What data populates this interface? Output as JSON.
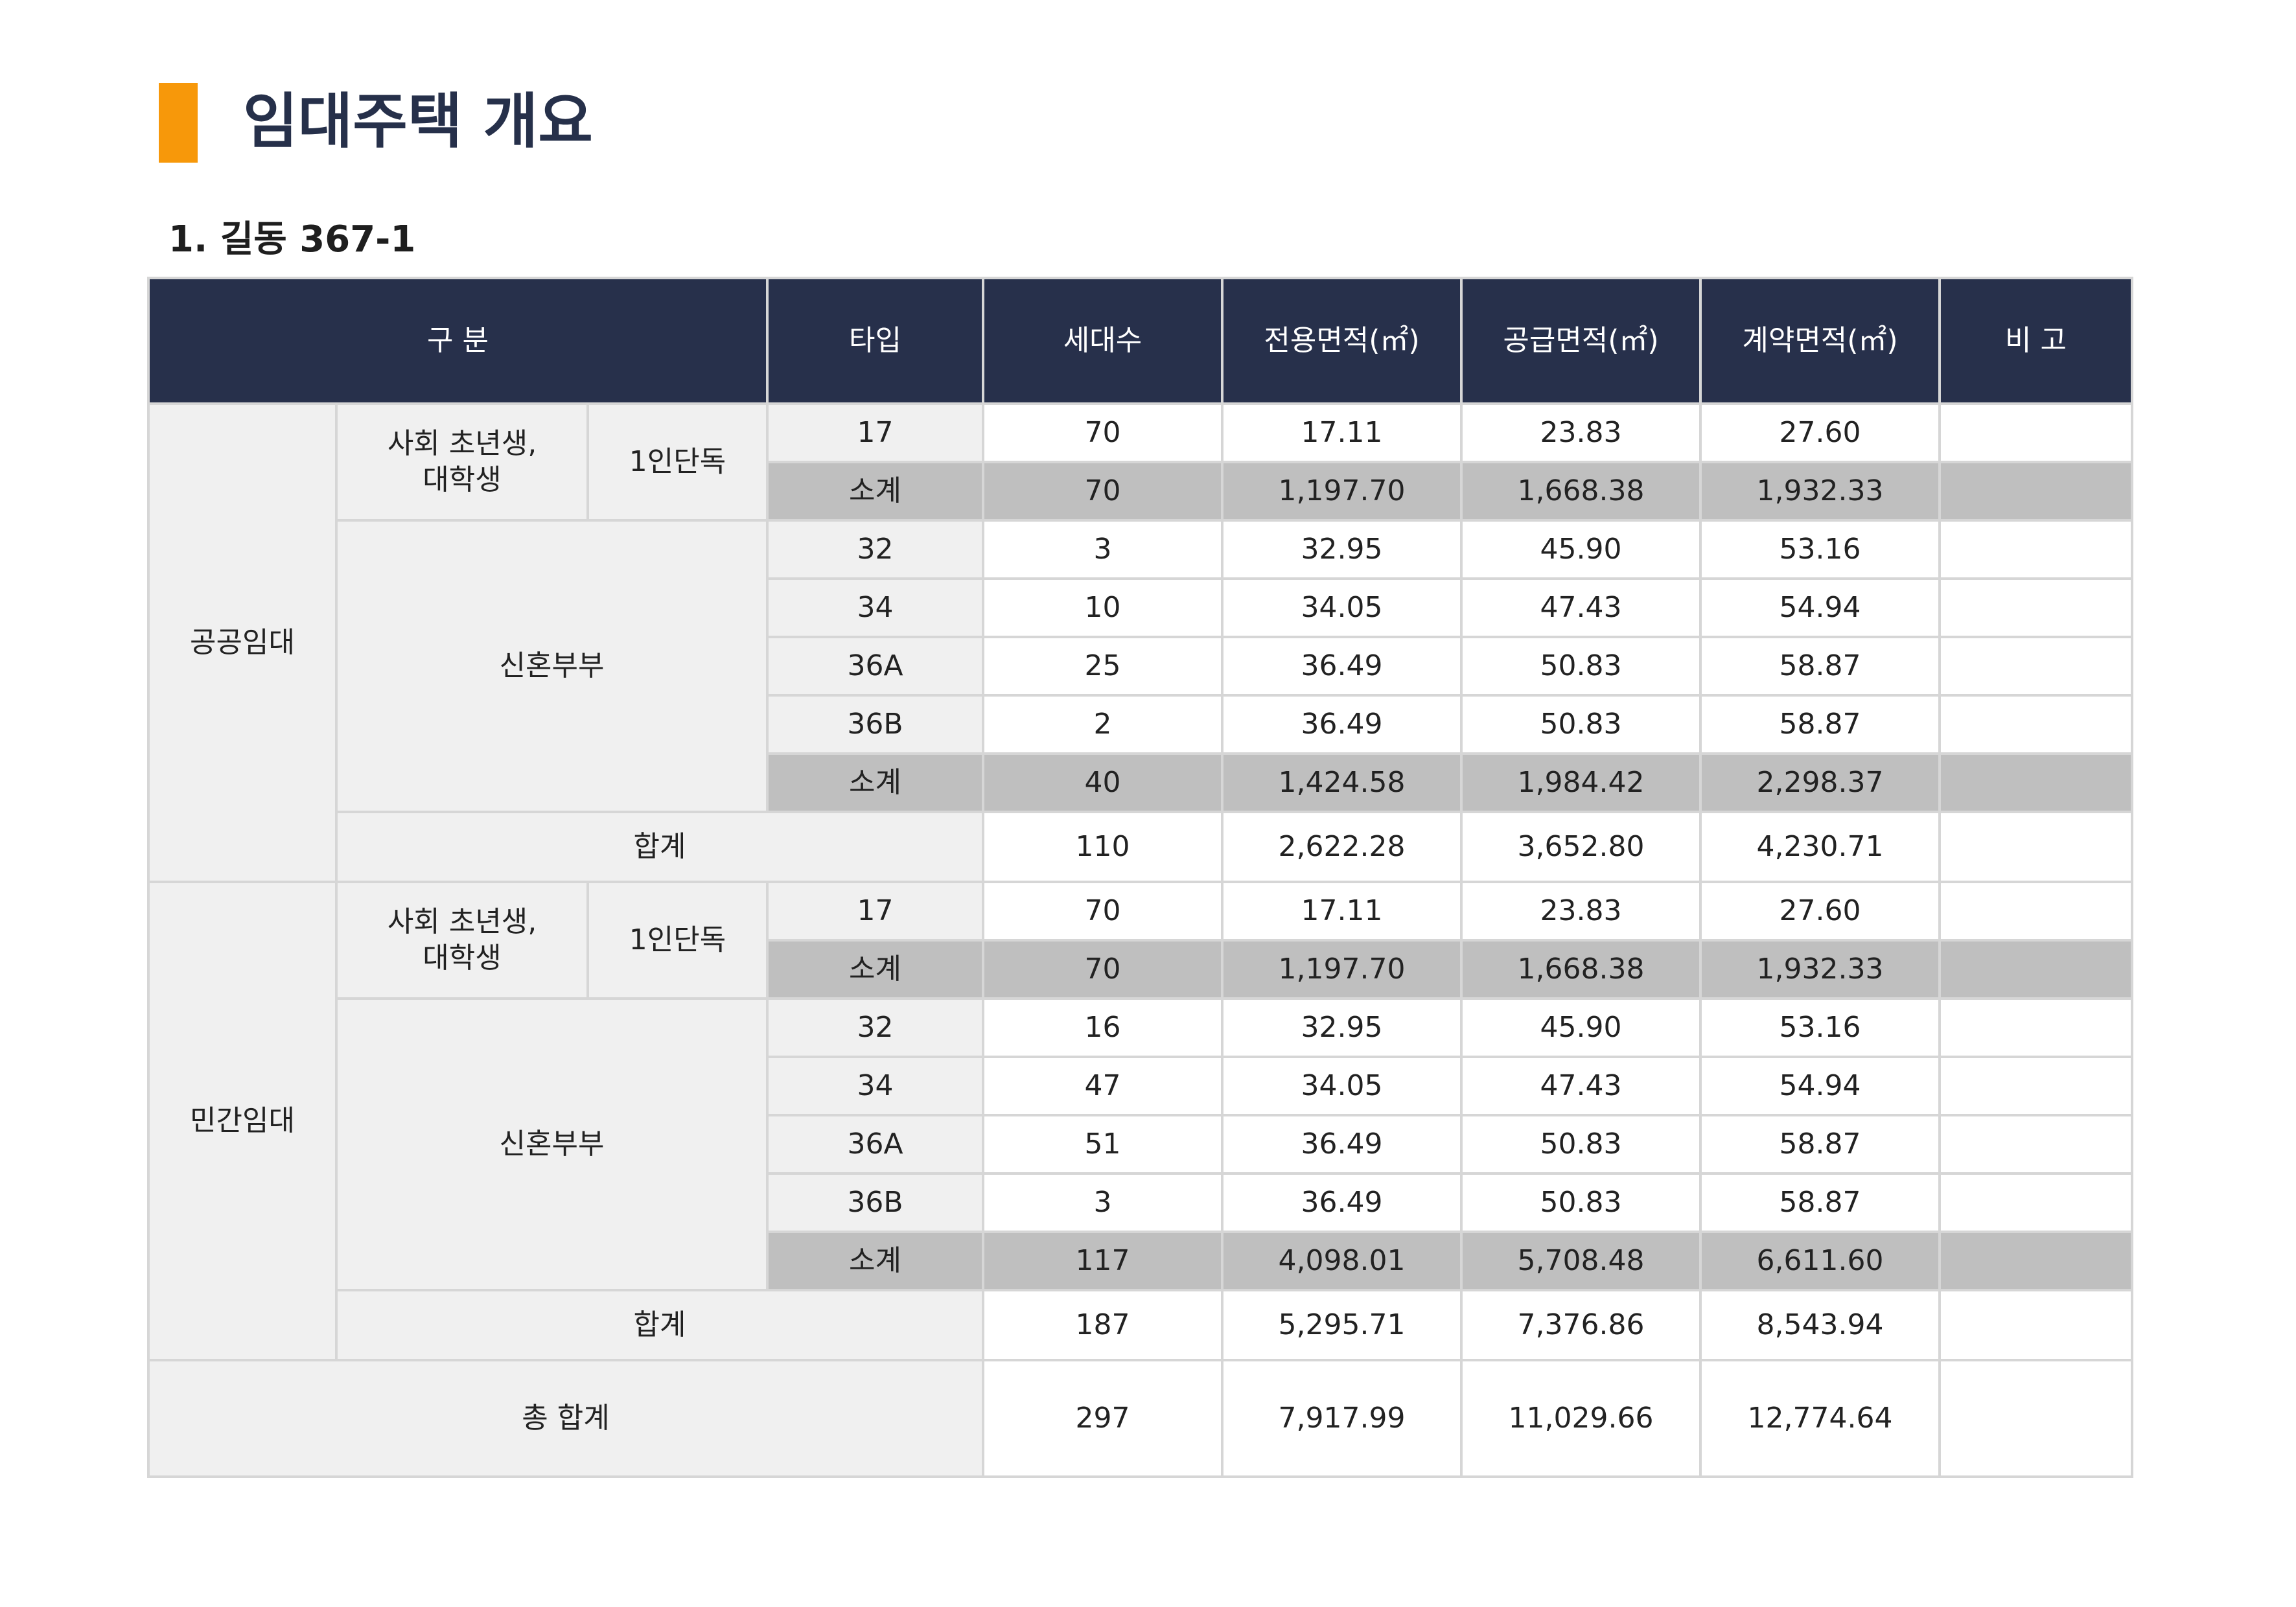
{
  "title": "임대주택 개요",
  "section": "1. 길동 367-1",
  "headers": {
    "category": "구 분",
    "type": "타입",
    "households": "세대수",
    "exclusive_area": "전용면적(㎡)",
    "supply_area": "공급면적(㎡)",
    "contract_area": "계약면적(㎡)",
    "remarks": "비 고"
  },
  "public": {
    "label": "공공임대",
    "young": {
      "group": "사회 초년생,\n대학생",
      "subgroup": "1인단독",
      "rows": [
        {
          "type": "17",
          "households": "70",
          "exclusive": "17.11",
          "supply": "23.83",
          "contract": "27.60"
        }
      ],
      "subtotal": {
        "label": "소계",
        "households": "70",
        "exclusive": "1,197.70",
        "supply": "1,668.38",
        "contract": "1,932.33"
      }
    },
    "newlywed": {
      "group": "신혼부부",
      "rows": [
        {
          "type": "32",
          "households": "3",
          "exclusive": "32.95",
          "supply": "45.90",
          "contract": "53.16"
        },
        {
          "type": "34",
          "households": "10",
          "exclusive": "34.05",
          "supply": "47.43",
          "contract": "54.94"
        },
        {
          "type": "36A",
          "households": "25",
          "exclusive": "36.49",
          "supply": "50.83",
          "contract": "58.87"
        },
        {
          "type": "36B",
          "households": "2",
          "exclusive": "36.49",
          "supply": "50.83",
          "contract": "58.87"
        }
      ],
      "subtotal": {
        "label": "소계",
        "households": "40",
        "exclusive": "1,424.58",
        "supply": "1,984.42",
        "contract": "2,298.37"
      }
    },
    "total": {
      "label": "합계",
      "households": "110",
      "exclusive": "2,622.28",
      "supply": "3,652.80",
      "contract": "4,230.71"
    }
  },
  "private": {
    "label": "민간임대",
    "young": {
      "group": "사회 초년생,\n대학생",
      "subgroup": "1인단독",
      "rows": [
        {
          "type": "17",
          "households": "70",
          "exclusive": "17.11",
          "supply": "23.83",
          "contract": "27.60"
        }
      ],
      "subtotal": {
        "label": "소계",
        "households": "70",
        "exclusive": "1,197.70",
        "supply": "1,668.38",
        "contract": "1,932.33"
      }
    },
    "newlywed": {
      "group": "신혼부부",
      "rows": [
        {
          "type": "32",
          "households": "16",
          "exclusive": "32.95",
          "supply": "45.90",
          "contract": "53.16"
        },
        {
          "type": "34",
          "households": "47",
          "exclusive": "34.05",
          "supply": "47.43",
          "contract": "54.94"
        },
        {
          "type": "36A",
          "households": "51",
          "exclusive": "36.49",
          "supply": "50.83",
          "contract": "58.87"
        },
        {
          "type": "36B",
          "households": "3",
          "exclusive": "36.49",
          "supply": "50.83",
          "contract": "58.87"
        }
      ],
      "subtotal": {
        "label": "소계",
        "households": "117",
        "exclusive": "4,098.01",
        "supply": "5,708.48",
        "contract": "6,611.60"
      }
    },
    "total": {
      "label": "합계",
      "households": "187",
      "exclusive": "5,295.71",
      "supply": "7,376.86",
      "contract": "8,543.94"
    }
  },
  "grand_total": {
    "label": "총 합계",
    "households": "297",
    "exclusive": "7,917.99",
    "supply": "11,029.66",
    "contract": "12,774.64"
  },
  "colors": {
    "header_bg": "#27304b",
    "accent": "#f7980a",
    "subtotal_bg": "#bfbfbf",
    "label_bg": "#f0f0f0"
  }
}
